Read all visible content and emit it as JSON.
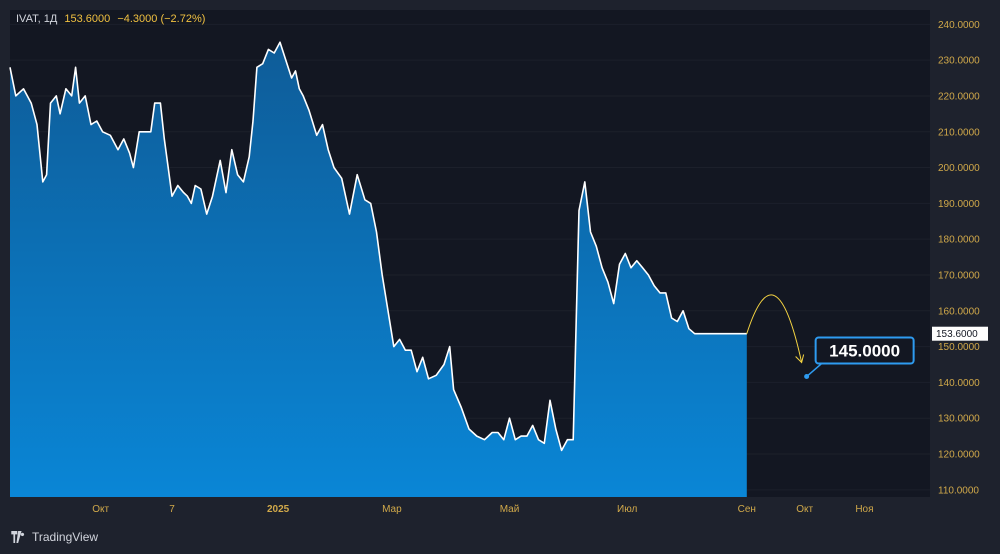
{
  "legend": {
    "symbol": "IVAT",
    "timeframe": "1Д",
    "price": "153.6000",
    "change": "−4.3000 (−2.72%)"
  },
  "branding": {
    "name": "TradingView",
    "icon": "tradingview-logo-icon"
  },
  "colors": {
    "background": "#131722",
    "frame": "#1e222d",
    "area_top": "#1160a0",
    "area_bottom": "#0a82d0",
    "line": "#ffffff",
    "forecast": "#f5d442",
    "target_border": "#2e9bf0",
    "axis_text": "#d1a94a"
  },
  "chart_data": {
    "type": "area",
    "title": "",
    "xlabel": "",
    "ylabel": "",
    "ylim": [
      108,
      244
    ],
    "xlim": [
      "2024-08-15",
      "2025-12-05"
    ],
    "y_ticks": [
      "110.0000",
      "120.0000",
      "130.0000",
      "140.0000",
      "150.0000",
      "160.0000",
      "170.0000",
      "180.0000",
      "190.0000",
      "200.0000",
      "210.0000",
      "220.0000",
      "230.0000",
      "240.0000"
    ],
    "x_ticks": [
      {
        "label": "Окт",
        "date": "2024-10-01",
        "bold": false
      },
      {
        "label": "7",
        "date": "2024-11-07",
        "bold": false
      },
      {
        "label": "2025",
        "date": "2025-01-01",
        "bold": true
      },
      {
        "label": "Мар",
        "date": "2025-03-01",
        "bold": false
      },
      {
        "label": "Май",
        "date": "2025-05-01",
        "bold": false
      },
      {
        "label": "Июл",
        "date": "2025-07-01",
        "bold": false
      },
      {
        "label": "Сен",
        "date": "2025-09-01",
        "bold": false
      },
      {
        "label": "Окт",
        "date": "2025-10-01",
        "bold": false
      },
      {
        "label": "Ноя",
        "date": "2025-11-01",
        "bold": false
      }
    ],
    "series": [
      {
        "x": [
          "2024-08-15",
          "2024-08-18",
          "2024-08-22",
          "2024-08-26",
          "2024-08-29",
          "2024-09-01",
          "2024-09-03",
          "2024-09-05",
          "2024-09-08",
          "2024-09-10",
          "2024-09-13",
          "2024-09-16",
          "2024-09-18",
          "2024-09-20",
          "2024-09-23",
          "2024-09-26",
          "2024-09-29",
          "2024-10-02",
          "2024-10-06",
          "2024-10-10",
          "2024-10-13",
          "2024-10-16",
          "2024-10-18",
          "2024-10-21",
          "2024-10-24",
          "2024-10-27",
          "2024-10-29",
          "2024-11-01",
          "2024-11-03",
          "2024-11-05",
          "2024-11-07",
          "2024-11-10",
          "2024-11-13",
          "2024-11-15",
          "2024-11-17",
          "2024-11-19",
          "2024-11-22",
          "2024-11-25",
          "2024-11-28",
          "2024-12-02",
          "2024-12-05",
          "2024-12-08",
          "2024-12-11",
          "2024-12-14",
          "2024-12-17",
          "2024-12-19",
          "2024-12-21",
          "2024-12-24",
          "2024-12-27",
          "2024-12-30",
          "2025-01-02",
          "2025-01-05",
          "2025-01-08",
          "2025-01-10",
          "2025-01-12",
          "2025-01-14",
          "2025-01-17",
          "2025-01-21",
          "2025-01-24",
          "2025-01-27",
          "2025-01-30",
          "2025-02-03",
          "2025-02-07",
          "2025-02-11",
          "2025-02-15",
          "2025-02-18",
          "2025-02-21",
          "2025-02-24",
          "2025-02-27",
          "2025-03-02",
          "2025-03-05",
          "2025-03-08",
          "2025-03-11",
          "2025-03-14",
          "2025-03-17",
          "2025-03-20",
          "2025-03-24",
          "2025-03-28",
          "2025-03-31",
          "2025-04-02",
          "2025-04-06",
          "2025-04-10",
          "2025-04-14",
          "2025-04-18",
          "2025-04-22",
          "2025-04-25",
          "2025-04-28",
          "2025-05-01",
          "2025-05-04",
          "2025-05-07",
          "2025-05-10",
          "2025-05-13",
          "2025-05-16",
          "2025-05-19",
          "2025-05-22",
          "2025-05-25",
          "2025-05-28",
          "2025-05-31",
          "2025-06-03",
          "2025-06-06",
          "2025-06-09",
          "2025-06-12",
          "2025-06-15",
          "2025-06-18",
          "2025-06-21",
          "2025-06-24",
          "2025-06-27",
          "2025-06-30",
          "2025-07-03",
          "2025-07-06",
          "2025-07-09",
          "2025-07-12",
          "2025-07-15",
          "2025-07-18",
          "2025-07-21",
          "2025-07-24",
          "2025-07-27",
          "2025-07-30",
          "2025-08-02",
          "2025-08-05",
          "2025-08-08",
          "2025-08-11",
          "2025-08-14",
          "2025-08-17",
          "2025-08-20",
          "2025-08-23",
          "2025-08-26",
          "2025-08-29",
          "2025-09-01"
        ],
        "values": [
          228,
          220,
          222,
          218,
          212,
          196,
          198,
          218,
          220,
          215,
          222,
          220,
          228,
          218,
          220,
          212,
          213,
          210,
          209,
          205,
          208,
          204,
          200,
          210,
          210,
          210,
          218,
          218,
          208,
          200,
          192,
          195,
          193,
          192,
          190,
          195,
          194,
          187,
          192,
          202,
          193,
          205,
          198,
          196,
          203,
          213,
          228,
          229,
          233,
          232,
          235,
          230,
          225,
          227,
          222,
          220,
          216,
          209,
          212,
          205,
          200,
          197,
          187,
          198,
          191,
          190,
          182,
          170,
          160,
          150,
          152,
          149,
          149,
          143,
          147,
          141,
          142,
          145,
          150,
          138,
          133,
          127,
          125,
          124,
          126,
          126,
          124,
          130,
          124,
          125,
          125,
          128,
          124,
          123,
          135,
          127,
          121,
          124,
          124,
          188,
          196,
          182,
          178,
          172,
          168,
          162,
          173,
          176,
          172,
          174,
          172,
          170,
          167,
          165,
          165,
          158,
          157,
          160,
          155,
          153.6,
          153.6,
          153.6,
          153.6,
          153.6,
          153.6,
          153.6,
          153.6,
          153.6,
          153.6
        ]
      }
    ],
    "last_price": 153.6,
    "last_price_label": "153.6000",
    "forecast": {
      "target": 145.0,
      "target_label": "145.0000",
      "start_date": "2025-09-01",
      "end_date": "2025-10-01"
    }
  }
}
